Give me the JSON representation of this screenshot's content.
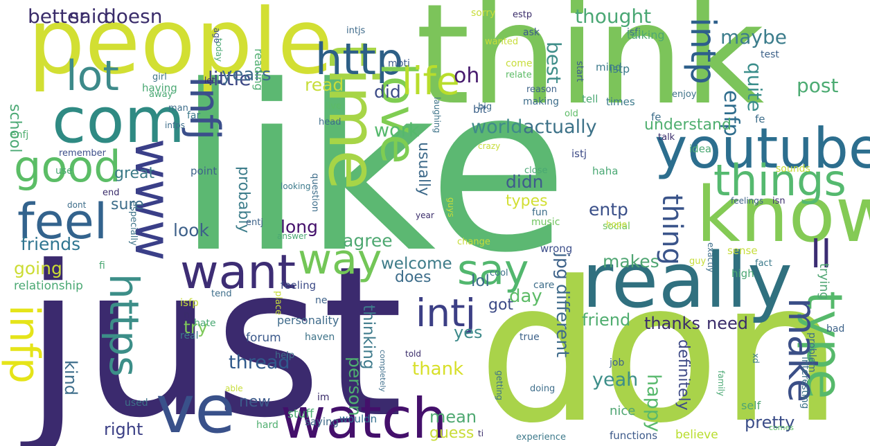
{
  "words": [
    {
      "text": "like",
      "color": "#5cb872"
    },
    {
      "text": "just",
      "color": "#3b2a6e"
    },
    {
      "text": "don",
      "color": "#a9d34a"
    },
    {
      "text": "think",
      "color": "#7cc45a"
    },
    {
      "text": "people",
      "color": "#d2df33"
    },
    {
      "text": "really",
      "color": "#30707f"
    },
    {
      "text": "know",
      "color": "#84ca55"
    },
    {
      "text": "ve",
      "color": "#39518a"
    },
    {
      "text": "watch",
      "color": "#44106b"
    },
    {
      "text": "com",
      "color": "#2f8a83"
    },
    {
      "text": "time",
      "color": "#a7d547"
    },
    {
      "text": "youtube",
      "color": "#2c6e8e"
    },
    {
      "text": "things",
      "color": "#55b96f"
    },
    {
      "text": "http",
      "color": "#2d5f86"
    },
    {
      "text": "www",
      "color": "#3a3f88"
    },
    {
      "text": "infj",
      "color": "#3b4f8b"
    },
    {
      "text": "love",
      "color": "#7fcd52"
    },
    {
      "text": "say",
      "color": "#52b76e"
    },
    {
      "text": "way",
      "color": "#73c657"
    },
    {
      "text": "want",
      "color": "#3d2d74"
    },
    {
      "text": "feel",
      "color": "#33638d"
    },
    {
      "text": "good",
      "color": "#5bbd66"
    },
    {
      "text": "lot",
      "color": "#3d8a8a"
    },
    {
      "text": "type",
      "color": "#56b96b"
    },
    {
      "text": "infp",
      "color": "#e5e419"
    },
    {
      "text": "https",
      "color": "#3c8e88"
    },
    {
      "text": "life",
      "color": "#b8dd2c"
    },
    {
      "text": "intj",
      "color": "#3c3f85"
    },
    {
      "text": "make",
      "color": "#3b4f87"
    },
    {
      "text": "intp",
      "color": "#2e5f8b"
    },
    {
      "text": "ll",
      "color": "#3b2c72"
    },
    {
      "text": "thing",
      "color": "#3a548a"
    },
    {
      "text": "better",
      "color": "#3a2c6a"
    },
    {
      "text": "said",
      "color": "#3a2c6a"
    },
    {
      "text": "doesn",
      "color": "#3a2c6a"
    },
    {
      "text": "little",
      "color": "#3f4a86"
    },
    {
      "text": "thought",
      "color": "#4aa774"
    },
    {
      "text": "maybe",
      "color": "#3c7d8c"
    },
    {
      "text": "post",
      "color": "#4cab72"
    },
    {
      "text": "years",
      "color": "#3e6a8c"
    },
    {
      "text": "read",
      "color": "#c7dd3a"
    },
    {
      "text": "did",
      "color": "#3b4a86"
    },
    {
      "text": "oh",
      "color": "#471b6e"
    },
    {
      "text": "best",
      "color": "#3f8e89"
    },
    {
      "text": "enfp",
      "color": "#2f6d8d"
    },
    {
      "text": "quite",
      "color": "#3b8e8b"
    },
    {
      "text": "work",
      "color": "#55b96c"
    },
    {
      "text": "world",
      "color": "#3f8a8a"
    },
    {
      "text": "actually",
      "color": "#3d7288"
    },
    {
      "text": "understand",
      "color": "#4fae6f"
    },
    {
      "text": "school",
      "color": "#4aa873"
    },
    {
      "text": "probably",
      "color": "#3d7d8b"
    },
    {
      "text": "great",
      "color": "#3d7b88"
    },
    {
      "text": "usually",
      "color": "#3e6a8a"
    },
    {
      "text": "didn",
      "color": "#3e5a8c"
    },
    {
      "text": "types",
      "color": "#d2df33"
    },
    {
      "text": "entp",
      "color": "#3a4f88"
    },
    {
      "text": "sure",
      "color": "#3d6d8a"
    },
    {
      "text": "look",
      "color": "#3d6089"
    },
    {
      "text": "long",
      "color": "#44106b"
    },
    {
      "text": "agree",
      "color": "#4ea871"
    },
    {
      "text": "friends",
      "color": "#2f7590"
    },
    {
      "text": "going",
      "color": "#ccdc34"
    },
    {
      "text": "welcome",
      "color": "#3d7b88"
    },
    {
      "text": "makes",
      "color": "#4fa572"
    },
    {
      "text": "does",
      "color": "#3d6d8a"
    },
    {
      "text": "lol",
      "color": "#3c6989"
    },
    {
      "text": "day",
      "color": "#5cbb66"
    },
    {
      "text": "different",
      "color": "#3e6a8a"
    },
    {
      "text": "jpg",
      "color": "#3d6289"
    },
    {
      "text": "got",
      "color": "#3c4a86"
    },
    {
      "text": "friend",
      "color": "#4fad6f"
    },
    {
      "text": "thanks",
      "color": "#3a2c6a"
    },
    {
      "text": "need",
      "color": "#3a2c6a"
    },
    {
      "text": "try",
      "color": "#7fc95a"
    },
    {
      "text": "yes",
      "color": "#3d8a8a"
    },
    {
      "text": "thread",
      "color": "#30598b"
    },
    {
      "text": "thank",
      "color": "#d7df28"
    },
    {
      "text": "person",
      "color": "#4fae70"
    },
    {
      "text": "thinking",
      "color": "#3e7a8b"
    },
    {
      "text": "yeah",
      "color": "#3c8e89"
    },
    {
      "text": "happy",
      "color": "#57b86c"
    },
    {
      "text": "definitely",
      "color": "#3e4a86"
    },
    {
      "text": "kind",
      "color": "#3e6e8b"
    },
    {
      "text": "right",
      "color": "#3b3f85"
    },
    {
      "text": "new",
      "color": "#3d5a8a"
    },
    {
      "text": "mean",
      "color": "#4ea871"
    },
    {
      "text": "guess",
      "color": "#c8dc38"
    },
    {
      "text": "pretty",
      "color": "#3b4d88"
    },
    {
      "text": "relationship",
      "color": "#4aa873"
    },
    {
      "text": "personality",
      "color": "#3e6a8a"
    },
    {
      "text": "forum",
      "color": "#3c5a8b"
    },
    {
      "text": "stuff",
      "color": "#4cab72"
    },
    {
      "text": "enfj",
      "color": "#4fae6f"
    },
    {
      "text": "isfp",
      "color": "#c7dd3a"
    },
    {
      "text": "istp",
      "color": "#3c7a8b"
    },
    {
      "text": "isfj",
      "color": "#3e6a8a"
    },
    {
      "text": "feeling",
      "color": "#3c4a86"
    },
    {
      "text": "haha",
      "color": "#4aa874"
    },
    {
      "text": "music",
      "color": "#6fc45e"
    },
    {
      "text": "social",
      "color": "#6fc45e"
    },
    {
      "text": "wrong",
      "color": "#3d4f8a"
    },
    {
      "text": "trying",
      "color": "#4fa572"
    },
    {
      "text": "experience",
      "color": "#3e7a8b"
    },
    {
      "text": "functions",
      "color": "#3d5a8a"
    },
    {
      "text": "believe",
      "color": "#b8dd2c"
    },
    {
      "text": "nice",
      "color": "#4fa572"
    },
    {
      "text": "saying",
      "color": "#3e6a8a"
    },
    {
      "text": "wouldn",
      "color": "#2f6d8d"
    },
    {
      "text": "used",
      "color": "#3d7288"
    },
    {
      "text": "hard",
      "color": "#4fae6f"
    },
    {
      "text": "self",
      "color": "#4fa572"
    },
    {
      "text": "comes",
      "color": "#5cbb66"
    },
    {
      "text": "sorry",
      "color": "#c7dd3a"
    },
    {
      "text": "estp",
      "color": "#3a2c6a"
    },
    {
      "text": "ask",
      "color": "#3c5a8b"
    },
    {
      "text": "talking",
      "color": "#4ea871"
    },
    {
      "text": "test",
      "color": "#3d6289"
    },
    {
      "text": "intjs",
      "color": "#3e6a8a"
    },
    {
      "text": "today",
      "color": "#4aa874"
    },
    {
      "text": "ago",
      "color": "#3d4f8a"
    },
    {
      "text": "reading",
      "color": "#4fae6f"
    },
    {
      "text": "wanted",
      "color": "#c7dd3a"
    },
    {
      "text": "mbti",
      "color": "#3c5a8b"
    },
    {
      "text": "girl",
      "color": "#3d7288"
    },
    {
      "text": "let",
      "color": "#3a2c6a"
    },
    {
      "text": "away",
      "color": "#4aa873"
    },
    {
      "text": "having",
      "color": "#4aa873"
    },
    {
      "text": "man",
      "color": "#3d6d8a"
    },
    {
      "text": "far",
      "color": "#3e7a8b"
    },
    {
      "text": "live",
      "color": "#5cbb66"
    },
    {
      "text": "head",
      "color": "#3d6d8a"
    },
    {
      "text": "big",
      "color": "#3e6a8a"
    },
    {
      "text": "laughing",
      "color": "#3d7288"
    },
    {
      "text": "crazy",
      "color": "#c7dd3a"
    },
    {
      "text": "istj",
      "color": "#3c4a86"
    },
    {
      "text": "idea",
      "color": "#4aa873"
    },
    {
      "text": "talk",
      "color": "#3a2c6a"
    },
    {
      "text": "fe",
      "color": "#3d6d8a"
    },
    {
      "text": "mind",
      "color": "#3c7a8b"
    },
    {
      "text": "relate",
      "color": "#5cbb66"
    },
    {
      "text": "reason",
      "color": "#3d6289"
    },
    {
      "text": "making",
      "color": "#3d6d8a"
    },
    {
      "text": "times",
      "color": "#3c7a8b"
    },
    {
      "text": "tell",
      "color": "#4aa873"
    },
    {
      "text": "old",
      "color": "#5cbb66"
    },
    {
      "text": "start",
      "color": "#3c5a8b"
    },
    {
      "text": "enjoy",
      "color": "#3d7288"
    },
    {
      "text": "come",
      "color": "#c7dd3a"
    },
    {
      "text": "remember",
      "color": "#3d4f8a"
    },
    {
      "text": "use",
      "color": "#4aa873"
    },
    {
      "text": "end",
      "color": "#3a2c6a"
    },
    {
      "text": "dont",
      "color": "#3d6d8a"
    },
    {
      "text": "especially",
      "color": "#3d7288"
    },
    {
      "text": "point",
      "color": "#3d6289"
    },
    {
      "text": "question",
      "color": "#3d6d8a"
    },
    {
      "text": "looking",
      "color": "#3c7a8b"
    },
    {
      "text": "year",
      "color": "#3a2c6a"
    },
    {
      "text": "guys",
      "color": "#c7dd3a"
    },
    {
      "text": "close",
      "color": "#4aa873"
    },
    {
      "text": "fun",
      "color": "#3d6d8a"
    },
    {
      "text": "hope",
      "color": "#c7dd3a"
    },
    {
      "text": "entj",
      "color": "#3d6289"
    },
    {
      "text": "answer",
      "color": "#4aa873"
    },
    {
      "text": "change",
      "color": "#c7dd3a"
    },
    {
      "text": "cool",
      "color": "#3d7288"
    },
    {
      "text": "care",
      "color": "#3d6d8a"
    },
    {
      "text": "high",
      "color": "#4aa873"
    },
    {
      "text": "guy",
      "color": "#c7dd3a"
    },
    {
      "text": "fact",
      "color": "#3c7a8b"
    },
    {
      "text": "exactly",
      "color": "#3d6d8a"
    },
    {
      "text": "sense",
      "color": "#c7dd3a"
    },
    {
      "text": "feelings",
      "color": "#3d6289"
    },
    {
      "text": "isn",
      "color": "#3a2c6a"
    },
    {
      "text": "sounds",
      "color": "#c7dd3a"
    },
    {
      "text": "fi",
      "color": "#4aa873"
    },
    {
      "text": "place",
      "color": "#c7dd3a"
    },
    {
      "text": "tend",
      "color": "#3d6d8a"
    },
    {
      "text": "ni",
      "color": "#3a2c6a"
    },
    {
      "text": "ne",
      "color": "#3d6289"
    },
    {
      "text": "hate",
      "color": "#4aa873"
    },
    {
      "text": "real",
      "color": "#3c7a8b"
    },
    {
      "text": "help",
      "color": "#3d6d8a"
    },
    {
      "text": "haven",
      "color": "#3d7288"
    },
    {
      "text": "true",
      "color": "#3d6289"
    },
    {
      "text": "told",
      "color": "#3a2c6a"
    },
    {
      "text": "completely",
      "color": "#3d6d8a"
    },
    {
      "text": "able",
      "color": "#c7dd3a"
    },
    {
      "text": "im",
      "color": "#3a2c6a"
    },
    {
      "text": "getting",
      "color": "#3d7288"
    },
    {
      "text": "doing",
      "color": "#3d6d8a"
    },
    {
      "text": "ti",
      "color": "#3a2c6a"
    },
    {
      "text": "job",
      "color": "#3d6289"
    },
    {
      "text": "family",
      "color": "#4aa873"
    },
    {
      "text": "xd",
      "color": "#3c7a8b"
    },
    {
      "text": "problem",
      "color": "#3d6d8a"
    },
    {
      "text": "interesting",
      "color": "#3d7288"
    },
    {
      "text": "bad",
      "color": "#3d6289"
    },
    {
      "text": "infps",
      "color": "#3d6d8a"
    },
    {
      "text": "bit",
      "color": "#3d6289"
    },
    {
      "text": "fe_",
      "color": "#3d6d8a"
    }
  ]
}
